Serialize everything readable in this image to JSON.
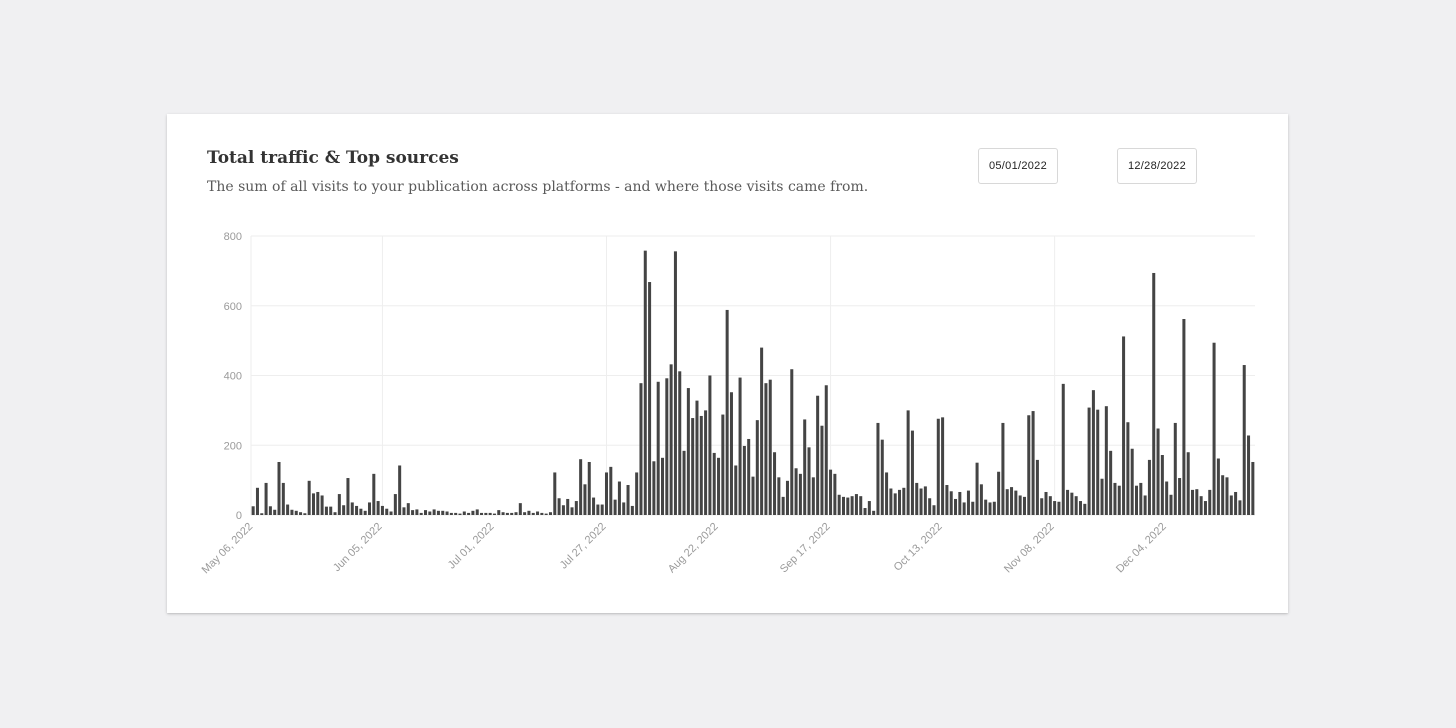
{
  "header": {
    "title": "Total traffic & Top sources",
    "subtitle": "The sum of all visits to your publication across platforms - and where those visits came from."
  },
  "date_range": {
    "start": "05/01/2022",
    "end": "12/28/2022"
  },
  "colors": {
    "bar": "#444444",
    "grid": "#eeeeee",
    "axis_text": "#9a9a9a"
  },
  "chart_data": {
    "type": "bar",
    "title": "Total traffic & Top sources",
    "xlabel": "",
    "ylabel": "",
    "ylim": [
      0,
      800
    ],
    "yticks": [
      0,
      200,
      400,
      600,
      800
    ],
    "grid": true,
    "x_start": "2022-05-06",
    "x_tick_labels": [
      "May 06, 2022",
      "Jun 05, 2022",
      "Jul 01, 2022",
      "Jul 27, 2022",
      "Aug 22, 2022",
      "Sep 17, 2022",
      "Oct 13, 2022",
      "Nov 08, 2022",
      "Dec 04, 2022"
    ],
    "x_tick_dates": [
      "2022-05-06",
      "2022-06-05",
      "2022-07-01",
      "2022-07-27",
      "2022-08-22",
      "2022-09-17",
      "2022-10-13",
      "2022-11-08",
      "2022-12-04"
    ],
    "values": [
      25,
      78,
      5,
      92,
      25,
      15,
      152,
      92,
      30,
      15,
      12,
      8,
      5,
      98,
      62,
      66,
      56,
      24,
      24,
      8,
      60,
      28,
      106,
      36,
      26,
      18,
      12,
      36,
      118,
      40,
      26,
      18,
      10,
      60,
      142,
      22,
      34,
      14,
      16,
      6,
      14,
      10,
      16,
      12,
      12,
      10,
      6,
      6,
      4,
      10,
      6,
      12,
      16,
      6,
      6,
      6,
      4,
      14,
      8,
      6,
      6,
      8,
      34,
      8,
      12,
      6,
      10,
      6,
      4,
      8,
      122,
      48,
      28,
      46,
      22,
      40,
      160,
      88,
      152,
      50,
      30,
      30,
      122,
      138,
      44,
      96,
      36,
      86,
      26,
      122,
      378,
      758,
      668,
      154,
      382,
      164,
      392,
      432,
      756,
      412,
      184,
      364,
      278,
      328,
      284,
      300,
      400,
      178,
      164,
      288,
      588,
      352,
      142,
      394,
      198,
      218,
      110,
      272,
      480,
      378,
      388,
      180,
      108,
      52,
      98,
      418,
      134,
      118,
      274,
      194,
      108,
      342,
      256,
      372,
      130,
      118,
      58,
      52,
      50,
      54,
      60,
      54,
      20,
      40,
      12,
      264,
      216,
      122,
      76,
      62,
      72,
      78,
      300,
      242,
      92,
      76,
      82,
      48,
      28,
      276,
      280,
      86,
      68,
      46,
      66,
      36,
      70,
      38,
      150,
      88,
      44,
      36,
      38,
      124,
      264,
      74,
      80,
      70,
      56,
      52,
      286,
      298,
      158,
      48,
      66,
      54,
      40,
      38,
      376,
      72,
      64,
      54,
      40,
      32,
      308,
      358,
      302,
      104,
      312,
      184,
      92,
      84,
      512,
      266,
      190,
      84,
      92,
      56,
      158,
      694,
      248,
      172,
      96,
      58,
      264,
      106,
      562,
      180,
      72,
      74,
      54,
      40,
      72,
      494,
      162,
      114,
      108,
      56,
      66,
      42,
      430,
      228,
      152
    ]
  }
}
